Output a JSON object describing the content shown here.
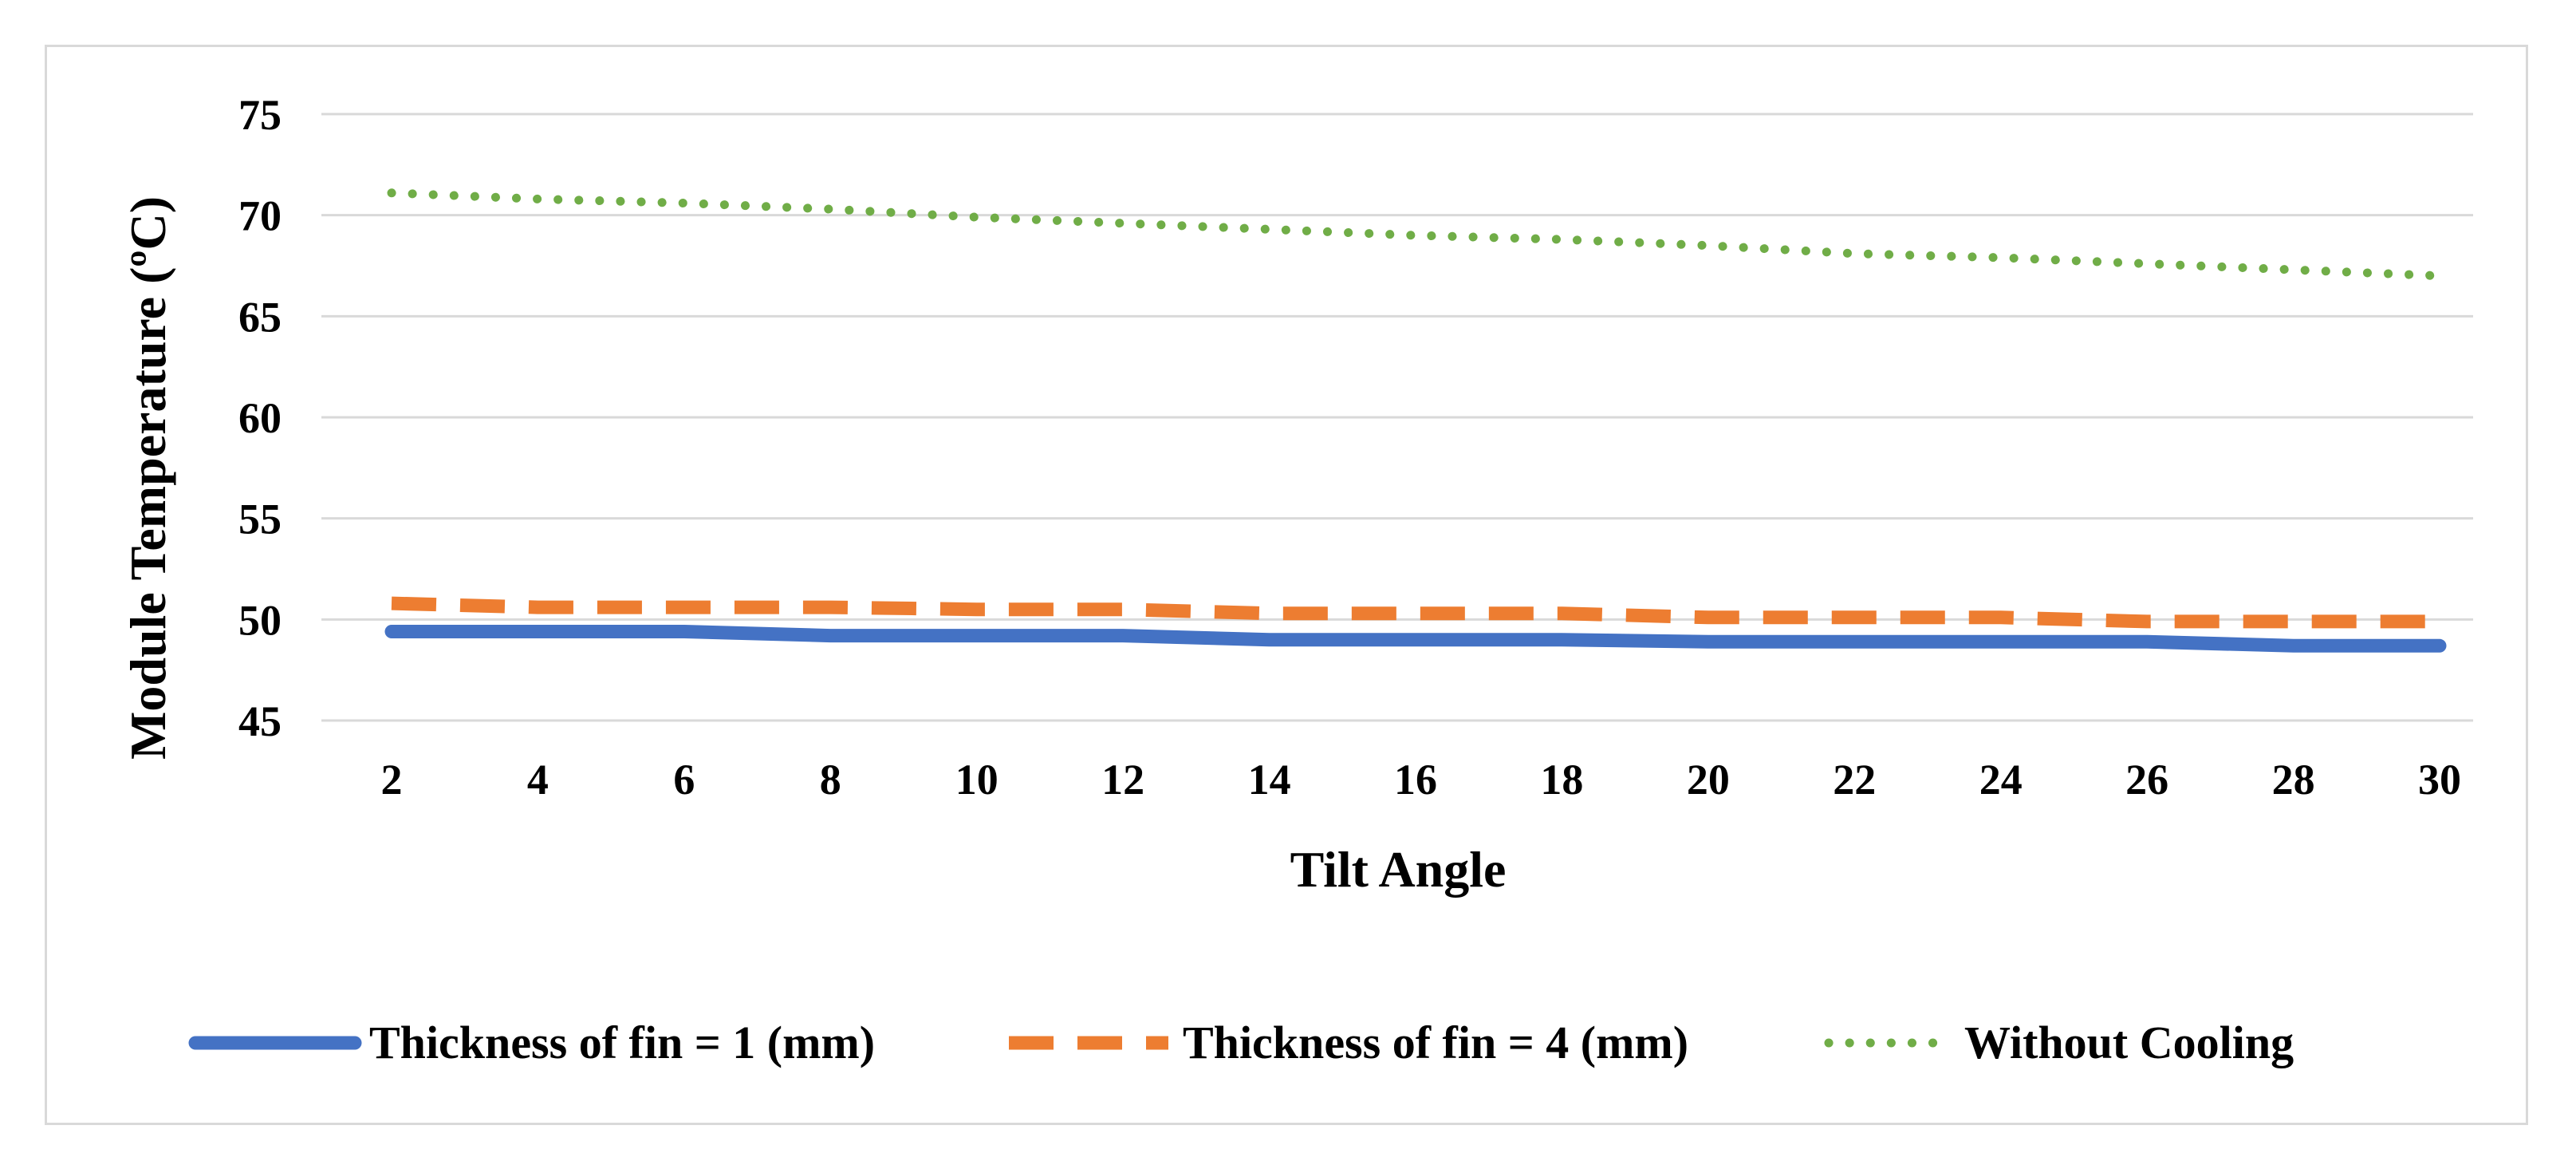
{
  "chart_data": {
    "type": "line",
    "title": "",
    "xlabel": "Tilt Angle",
    "ylabel": "Module Temperature (ºC)",
    "x": [
      2,
      4,
      6,
      8,
      10,
      12,
      14,
      16,
      18,
      20,
      22,
      24,
      26,
      28,
      30
    ],
    "ylim": [
      45,
      75
    ],
    "yticks": [
      45,
      50,
      55,
      60,
      65,
      70,
      75
    ],
    "grid": true,
    "legend_position": "bottom",
    "series": [
      {
        "name": "Thickness of fin = 1 (mm)",
        "color": "#4472C4",
        "style": "solid",
        "values": [
          49.4,
          49.4,
          49.4,
          49.2,
          49.2,
          49.2,
          49.0,
          49.0,
          49.0,
          48.9,
          48.9,
          48.9,
          48.9,
          48.7,
          48.7
        ]
      },
      {
        "name": "Thickness of fin = 4 (mm)",
        "color": "#ED7D31",
        "style": "dashed",
        "values": [
          50.8,
          50.6,
          50.6,
          50.6,
          50.5,
          50.5,
          50.3,
          50.3,
          50.3,
          50.1,
          50.1,
          50.1,
          49.9,
          49.9,
          49.9
        ]
      },
      {
        "name": "Without Cooling",
        "color": "#70AD47",
        "style": "dotted",
        "values": [
          71.1,
          70.8,
          70.6,
          70.3,
          69.9,
          69.6,
          69.3,
          69.0,
          68.8,
          68.5,
          68.1,
          67.9,
          67.6,
          67.3,
          67.0
        ]
      }
    ]
  }
}
